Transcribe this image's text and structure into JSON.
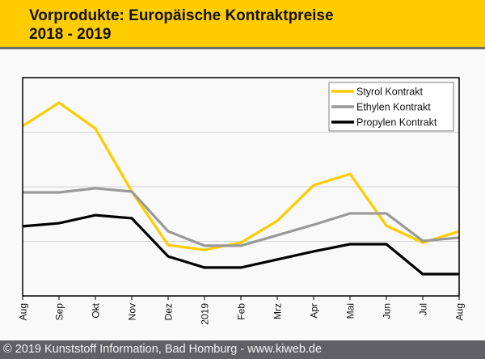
{
  "header": {
    "title_line1": "Vorprodukte: Europäische Kontraktpreise",
    "title_line2": "2018 - 2019"
  },
  "footer": {
    "text": "© 2019 Kunststoff Information, Bad Homburg - www.kiweb.de"
  },
  "colors": {
    "header_bg": "#ffcc00",
    "footer_bg": "#616165",
    "styrol": "#ffcc00",
    "ethylen": "#999999",
    "propylen": "#000000",
    "grid": "#d4d4d4"
  },
  "chart_data": {
    "type": "line",
    "title": "Vorprodukte: Europäische Kontraktpreise 2018 - 2019",
    "xlabel": "",
    "ylabel": "",
    "y_axis_labeled": false,
    "y_units": "relative index (no y-axis labels shown)",
    "ylim": [
      0,
      100
    ],
    "y_gridlines": [
      25,
      50,
      75
    ],
    "grid": true,
    "legend_position": "top-right",
    "categories": [
      "Aug",
      "Sep",
      "Okt",
      "Nov",
      "Dez",
      "2019",
      "Feb",
      "Mrz",
      "Apr",
      "Mai",
      "Jun",
      "Jul",
      "Aug"
    ],
    "series": [
      {
        "name": "Styrol Kontrakt",
        "color": "#ffcc00",
        "values": [
          77.8,
          88.5,
          76.7,
          47.8,
          23.3,
          21.1,
          24.4,
          34.4,
          50.7,
          55.9,
          32.2,
          24.4,
          29.6
        ]
      },
      {
        "name": "Ethylen Kontrakt",
        "color": "#999999",
        "values": [
          47.4,
          47.4,
          49.3,
          47.8,
          29.6,
          23.0,
          23.0,
          27.8,
          32.6,
          37.8,
          37.8,
          25.2,
          26.7
        ]
      },
      {
        "name": "Propylen Kontrakt",
        "color": "#000000",
        "values": [
          31.9,
          33.3,
          37.0,
          35.6,
          18.1,
          13.0,
          13.0,
          16.7,
          20.4,
          23.7,
          23.7,
          10.0,
          10.0
        ]
      }
    ]
  }
}
